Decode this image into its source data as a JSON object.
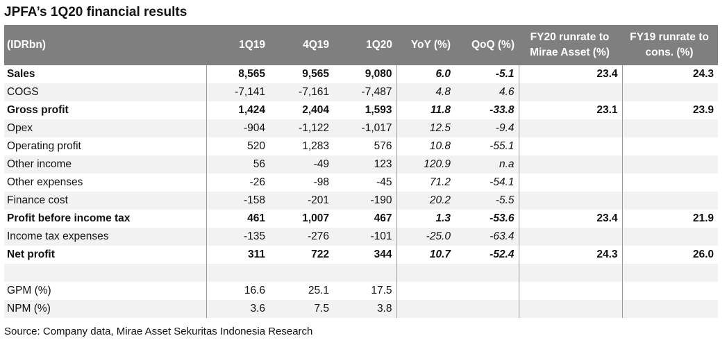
{
  "title": "JPFA’s 1Q20 financial results",
  "header": {
    "unit": "(IDRbn)",
    "columns": [
      "1Q19",
      "4Q19",
      "1Q20",
      "YoY (%)",
      "QoQ (%)",
      "FY20 runrate to Mirae Asset (%)",
      "FY19 runrate to cons. (%)"
    ]
  },
  "rows": [
    {
      "label": "Sales",
      "q1_19": "8,565",
      "q4_19": "9,565",
      "q1_20": "9,080",
      "yoy": "6.0",
      "qoq": "-5.1",
      "fy20": "23.4",
      "fy19": "24.3",
      "bold": true
    },
    {
      "label": "COGS",
      "q1_19": "-7,141",
      "q4_19": "-7,161",
      "q1_20": "-7,487",
      "yoy": "4.8",
      "qoq": "4.6",
      "fy20": "",
      "fy19": "",
      "bold": false
    },
    {
      "label": "Gross profit",
      "q1_19": "1,424",
      "q4_19": "2,404",
      "q1_20": "1,593",
      "yoy": "11.8",
      "qoq": "-33.8",
      "fy20": "23.1",
      "fy19": "23.9",
      "bold": true
    },
    {
      "label": "Opex",
      "q1_19": "-904",
      "q4_19": "-1,122",
      "q1_20": "-1,017",
      "yoy": "12.5",
      "qoq": "-9.4",
      "fy20": "",
      "fy19": "",
      "bold": false
    },
    {
      "label": "Operating profit",
      "q1_19": "520",
      "q4_19": "1,283",
      "q1_20": "576",
      "yoy": "10.8",
      "qoq": "-55.1",
      "fy20": "",
      "fy19": "",
      "bold": false
    },
    {
      "label": "Other income",
      "q1_19": "56",
      "q4_19": "-49",
      "q1_20": "123",
      "yoy": "120.9",
      "qoq": "n.a",
      "fy20": "",
      "fy19": "",
      "bold": false
    },
    {
      "label": "Other expenses",
      "q1_19": "-26",
      "q4_19": "-98",
      "q1_20": "-45",
      "yoy": "71.2",
      "qoq": "-54.1",
      "fy20": "",
      "fy19": "",
      "bold": false
    },
    {
      "label": "Finance cost",
      "q1_19": "-158",
      "q4_19": "-201",
      "q1_20": "-190",
      "yoy": "20.2",
      "qoq": "-5.5",
      "fy20": "",
      "fy19": "",
      "bold": false
    },
    {
      "label": "Profit before income tax",
      "q1_19": "461",
      "q4_19": "1,007",
      "q1_20": "467",
      "yoy": "1.3",
      "qoq": "-53.6",
      "fy20": "23.4",
      "fy19": "21.9",
      "bold": true
    },
    {
      "label": "Income tax expenses",
      "q1_19": "-135",
      "q4_19": "-276",
      "q1_20": "-101",
      "yoy": "-25.0",
      "qoq": "-63.4",
      "fy20": "",
      "fy19": "",
      "bold": false
    },
    {
      "label": "Net profit",
      "q1_19": "311",
      "q4_19": "722",
      "q1_20": "344",
      "yoy": "10.7",
      "qoq": "-52.4",
      "fy20": "24.3",
      "fy19": "26.0",
      "bold": true
    },
    {
      "label": "",
      "q1_19": "",
      "q4_19": "",
      "q1_20": "",
      "yoy": "",
      "qoq": "",
      "fy20": "",
      "fy19": "",
      "bold": false
    },
    {
      "label": "GPM (%)",
      "q1_19": "16.6",
      "q4_19": "25.1",
      "q1_20": "17.5",
      "yoy": "",
      "qoq": "",
      "fy20": "",
      "fy19": "",
      "bold": false
    },
    {
      "label": "NPM (%)",
      "q1_19": "3.6",
      "q4_19": "7.5",
      "q1_20": "3.8",
      "yoy": "",
      "qoq": "",
      "fy20": "",
      "fy19": "",
      "bold": false
    }
  ],
  "source": "Source: Company data, Mirae Asset Sekuritas Indonesia Research"
}
